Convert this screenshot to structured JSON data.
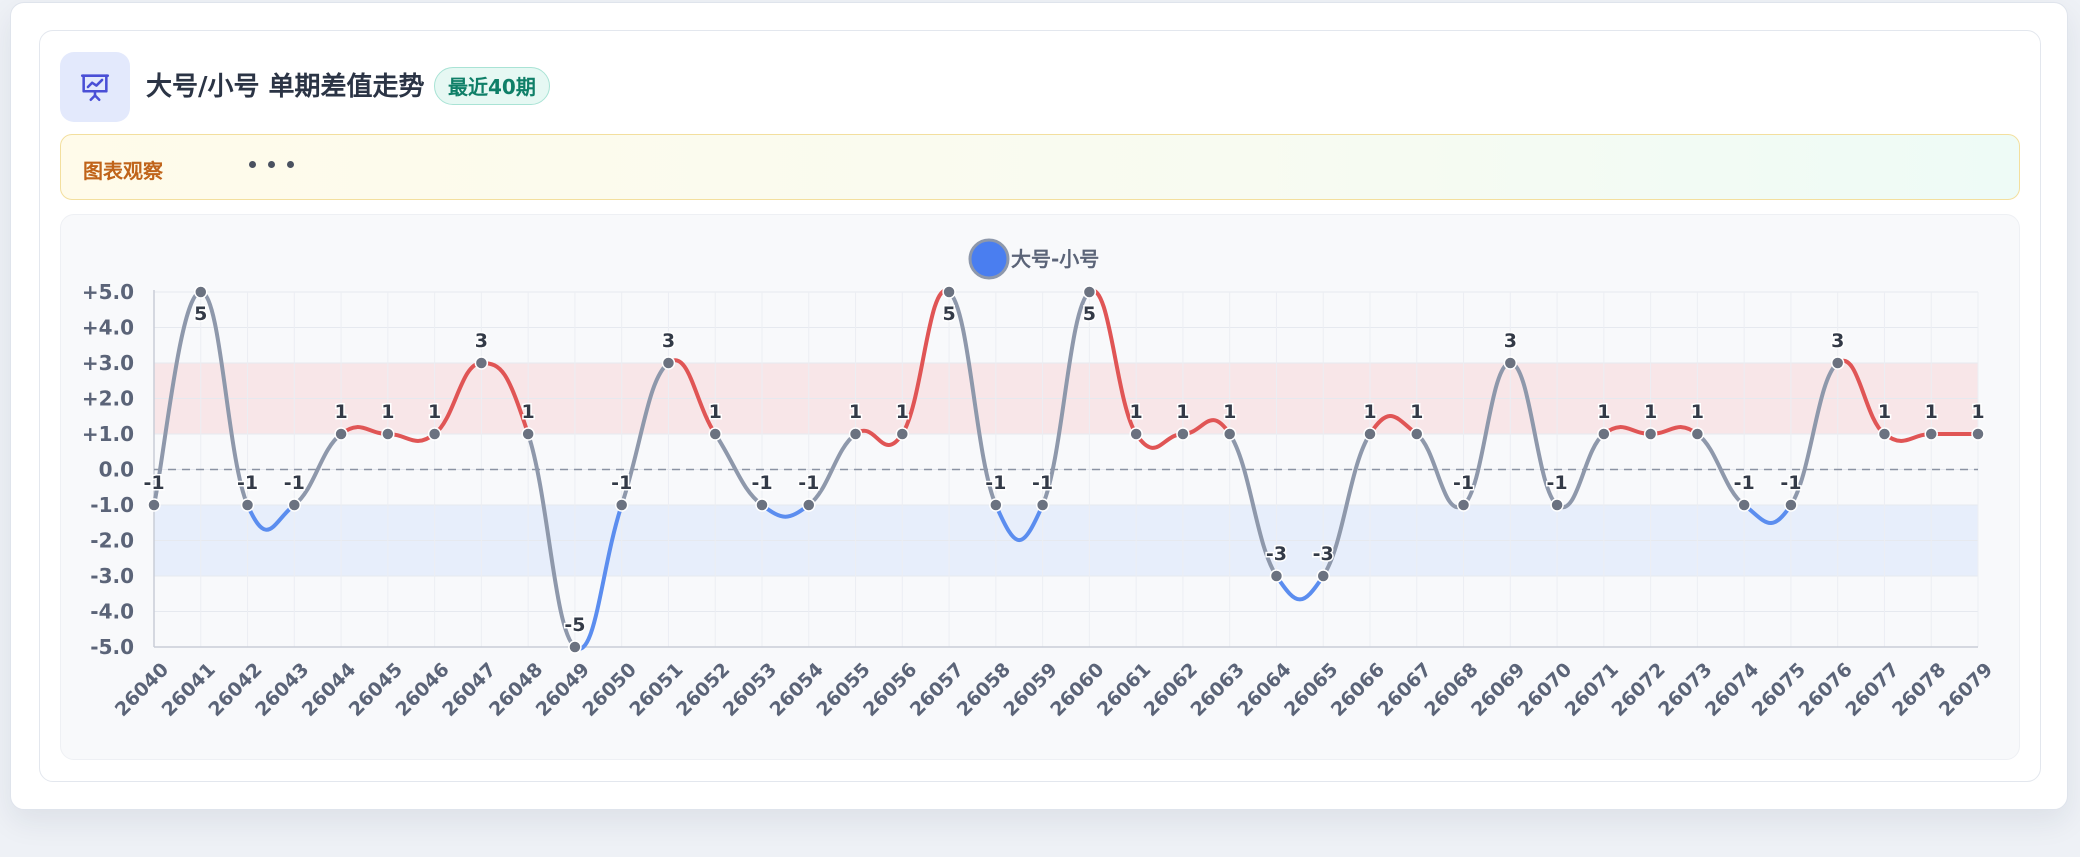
{
  "header": {
    "icon": "presentation-chart-icon",
    "title": "大号/小号 单期差值走势",
    "badge": "最近40期"
  },
  "observation": {
    "label": "图表观察",
    "dots_icon": "ellipsis-icon"
  },
  "chart_data": {
    "type": "line",
    "title": "",
    "xlabel": "",
    "ylabel": "",
    "legend": {
      "entries": [
        "大号-小号"
      ],
      "placement": "top-center"
    },
    "categories": [
      "26040",
      "26041",
      "26042",
      "26043",
      "26044",
      "26045",
      "26046",
      "26047",
      "26048",
      "26049",
      "26050",
      "26051",
      "26052",
      "26053",
      "26054",
      "26055",
      "26056",
      "26057",
      "26058",
      "26059",
      "26060",
      "26061",
      "26062",
      "26063",
      "26064",
      "26065",
      "26066",
      "26067",
      "26068",
      "26069",
      "26070",
      "26071",
      "26072",
      "26073",
      "26074",
      "26075",
      "26076",
      "26077",
      "26078",
      "26079"
    ],
    "series": [
      {
        "name": "大号-小号",
        "values": [
          -1,
          5,
          -1,
          -1,
          1,
          1,
          1,
          3,
          1,
          -5,
          -1,
          3,
          1,
          -1,
          -1,
          1,
          1,
          5,
          -1,
          -1,
          5,
          1,
          1,
          1,
          -3,
          -3,
          1,
          1,
          -1,
          3,
          -1,
          1,
          1,
          1,
          -1,
          -1,
          3,
          1,
          1,
          1
        ],
        "data_labels": [
          "-1",
          "5",
          "-1",
          "-1",
          "1",
          "1",
          "1",
          "3",
          "1",
          "-5",
          "-1",
          "3",
          "1",
          "-1",
          "-1",
          "1",
          "1",
          "5",
          "-1",
          "-1",
          "5",
          "1",
          "1",
          "1",
          "-3",
          "-3",
          "1",
          "1",
          "-1",
          "3",
          "-1",
          "1",
          "1",
          "1",
          "-1",
          "-1",
          "3",
          "1",
          "1",
          "1"
        ]
      }
    ],
    "ylim": [
      -5,
      5
    ],
    "yticks": [
      {
        "value": 5,
        "label": "+5.0"
      },
      {
        "value": 4,
        "label": "+4.0"
      },
      {
        "value": 3,
        "label": "+3.0"
      },
      {
        "value": 2,
        "label": "+2.0"
      },
      {
        "value": 1,
        "label": "+1.0"
      },
      {
        "value": 0,
        "label": "0.0"
      },
      {
        "value": -1,
        "label": "-1.0"
      },
      {
        "value": -2,
        "label": "-2.0"
      },
      {
        "value": -3,
        "label": "-3.0"
      },
      {
        "value": -4,
        "label": "-4.0"
      },
      {
        "value": -5,
        "label": "-5.0"
      }
    ],
    "bands": [
      {
        "from": 1,
        "to": 3,
        "color": "#f8e6e8"
      },
      {
        "from": -3,
        "to": -1,
        "color": "#e7eefb"
      }
    ],
    "zero_line": true,
    "grid": true,
    "colors": {
      "positive": "#e05555",
      "negative": "#5b8def",
      "neutral": "#8e98ab",
      "legend_marker": "#4a7ef0",
      "point": "#6b7280"
    }
  }
}
